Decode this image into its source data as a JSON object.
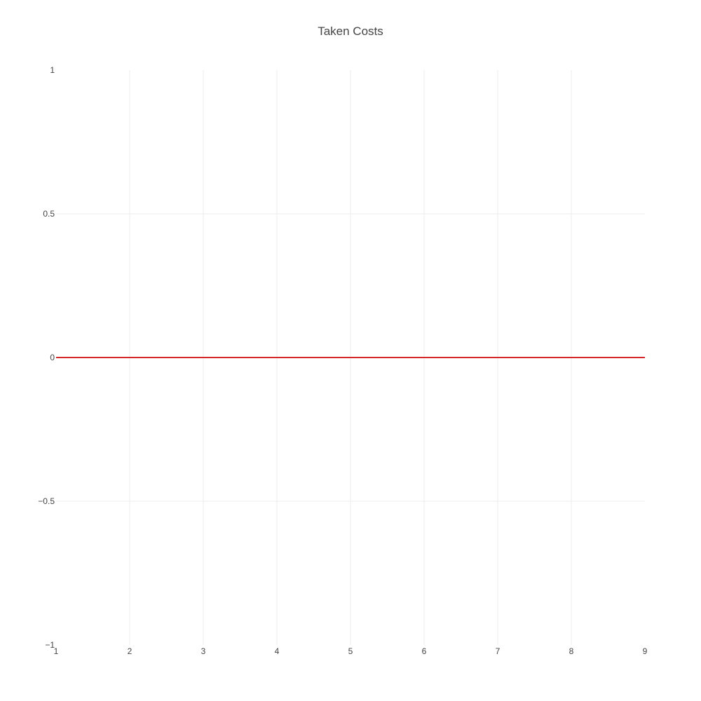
{
  "chart_data": {
    "type": "line",
    "title": "Taken Costs",
    "xlabel": "",
    "ylabel": "",
    "xlim": [
      1,
      9
    ],
    "ylim": [
      -1,
      1
    ],
    "x_ticks": [
      1,
      2,
      3,
      4,
      5,
      6,
      7,
      8,
      9
    ],
    "x_tick_labels": [
      "1",
      "2",
      "3",
      "4",
      "5",
      "6",
      "7",
      "8",
      "9"
    ],
    "y_ticks": [
      -1,
      -0.5,
      0,
      0.5,
      1
    ],
    "y_tick_labels": [
      "−1",
      "−0.5",
      "0",
      "0.5",
      "1"
    ],
    "grid": true,
    "legend": "none",
    "series": [
      {
        "name": "Taken Costs",
        "color": "#d62728",
        "x": [
          1,
          2,
          3,
          4,
          5,
          6,
          7,
          8,
          9
        ],
        "y": [
          0,
          0,
          0,
          0,
          0,
          0,
          0,
          0,
          0
        ]
      }
    ]
  },
  "colors": {
    "grid": "#eeeeee",
    "text": "#444444",
    "background": "#ffffff"
  }
}
